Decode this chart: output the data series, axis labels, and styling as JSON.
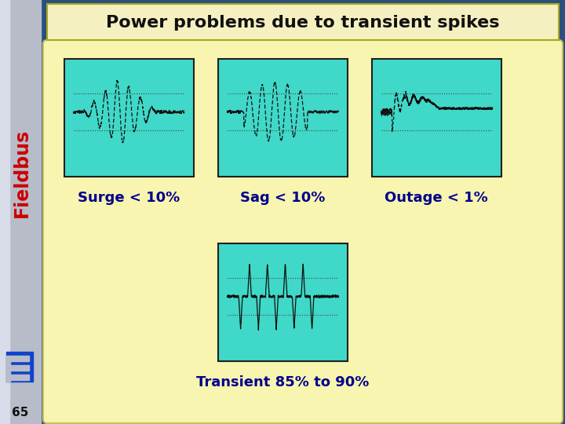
{
  "title": "Power problems due to transient spikes",
  "title_bg": "#f5f0c0",
  "title_color": "#111111",
  "slide_bg": "#2a5080",
  "content_bg": "#f8f5b0",
  "panel_bg": "#40d8c8",
  "panel_border": "#202020",
  "label_color": "#00008B",
  "label_fontsize": 13,
  "fieldbus_color": "#cc0000",
  "sidebar_color": "#b8bcc8",
  "sidebar_light": "#d8dce8",
  "logo_color": "#1144cc",
  "slide_number": "65",
  "labels": [
    "Surge < 10%",
    "Sag < 10%",
    "Outage < 1%",
    "Transient 85% to 90%"
  ]
}
